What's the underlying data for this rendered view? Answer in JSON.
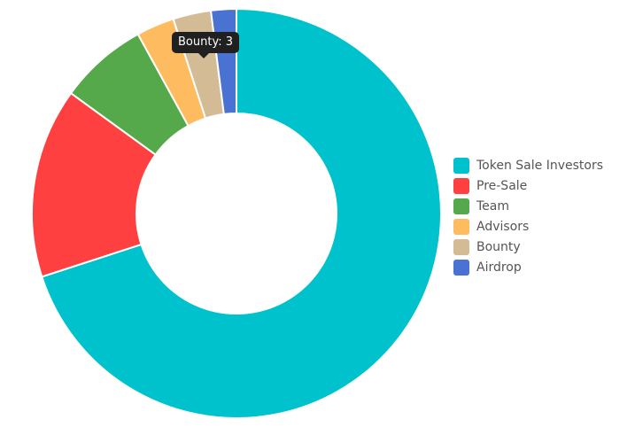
{
  "chart_data": {
    "type": "pie",
    "donut": true,
    "categories": [
      "Token Sale Investors",
      "Pre-Sale",
      "Team",
      "Advisors",
      "Bounty",
      "Airdrop"
    ],
    "values": [
      70,
      15,
      7,
      3,
      3,
      2
    ],
    "colors": [
      "#00c2cd",
      "#ff4040",
      "#55a94b",
      "#ffbb5f",
      "#d3bb96",
      "#4a72d2"
    ],
    "legend": "right",
    "tooltip": {
      "category": "Bounty",
      "text": "Bounty: 3"
    }
  }
}
